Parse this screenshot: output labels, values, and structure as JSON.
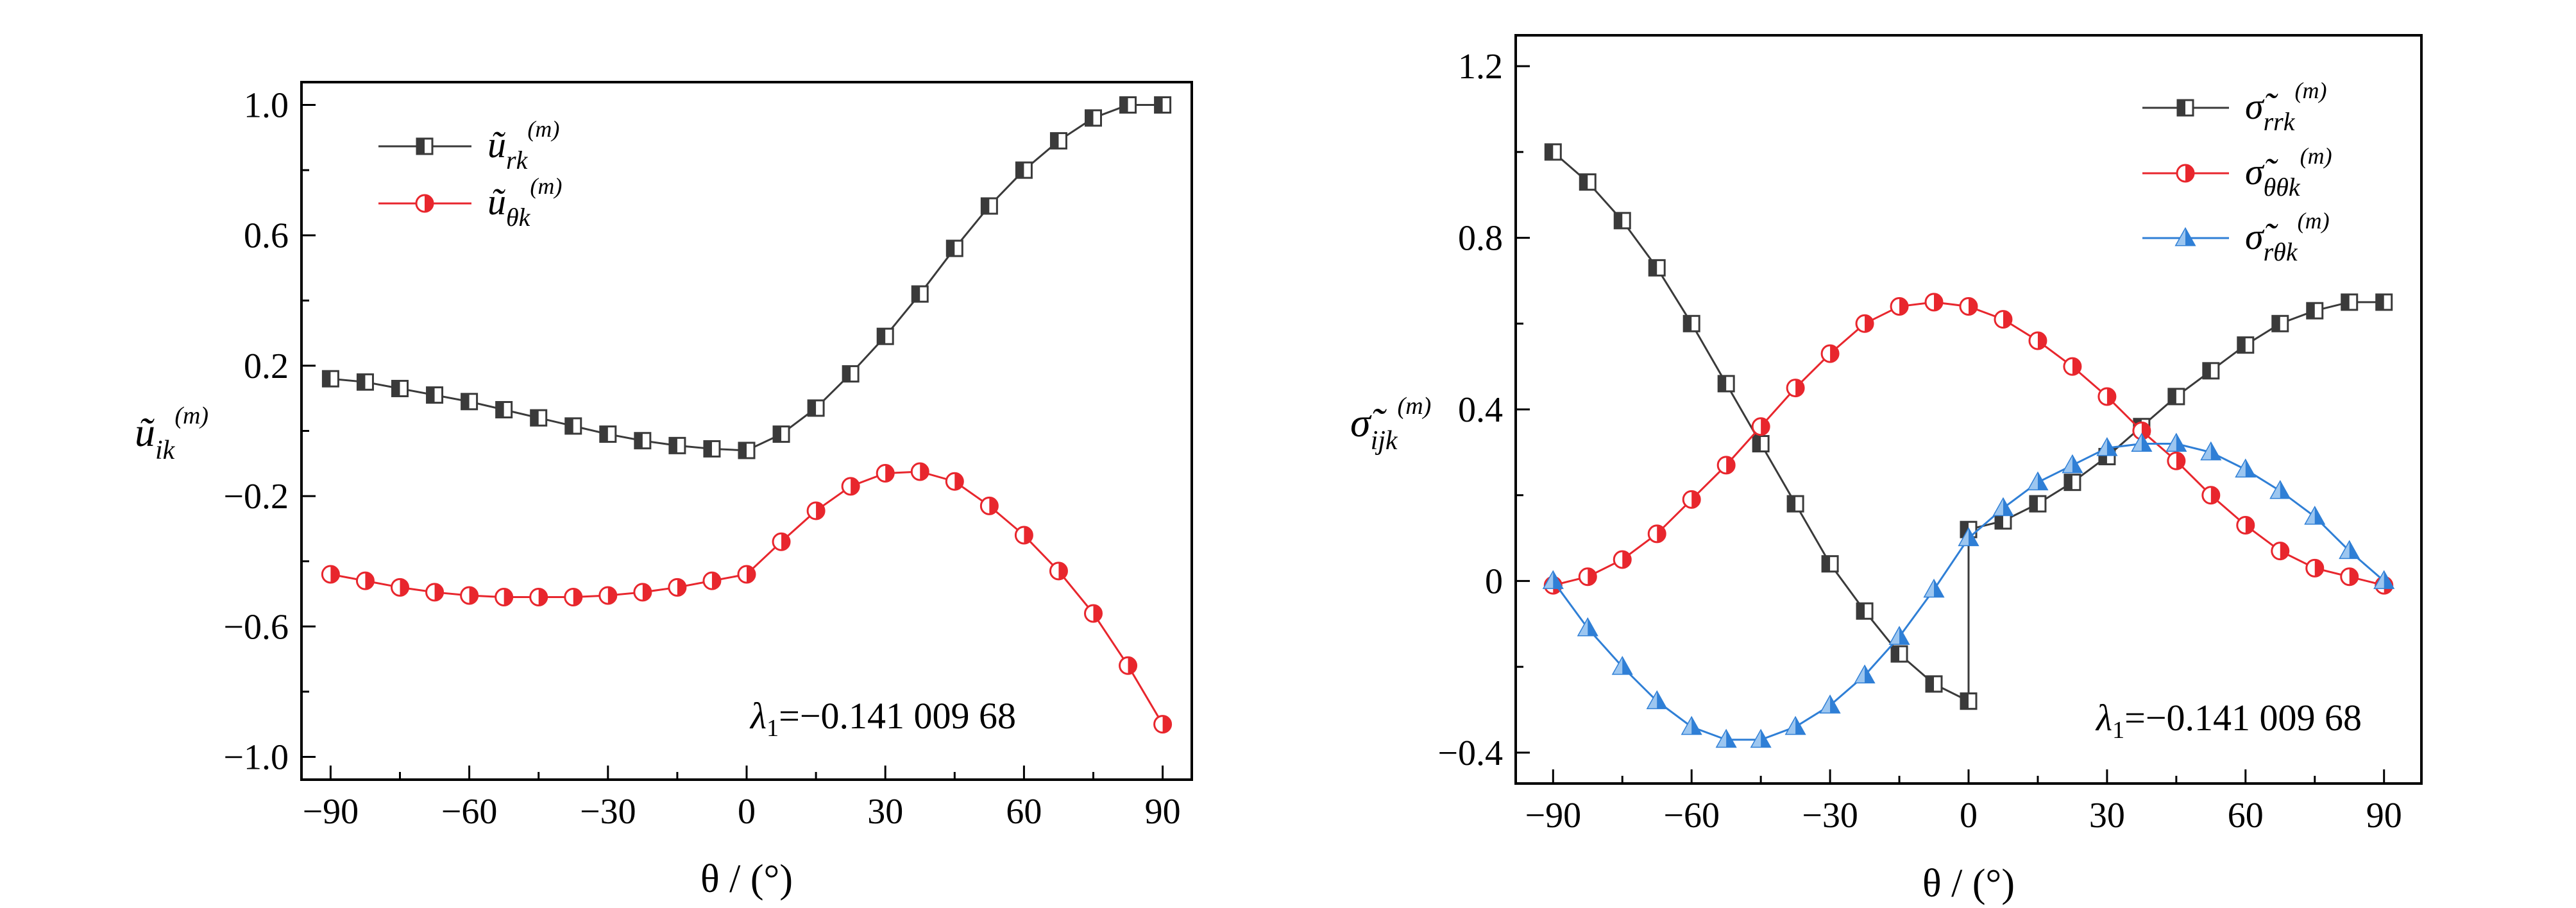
{
  "chart_data": [
    {
      "type": "line",
      "xlabel": "θ / (°)",
      "ylabel": "ũ_ik^(m)",
      "xlim": [
        -90,
        90
      ],
      "ylim": [
        -1.0,
        1.0
      ],
      "xticks": [
        -90,
        -60,
        -30,
        0,
        30,
        60,
        90
      ],
      "xtick_labels": [
        "−90",
        "−60",
        "−30",
        "0",
        "30",
        "60",
        "90"
      ],
      "yticks": [
        -1.0,
        -0.6,
        -0.2,
        0.2,
        0.6,
        1.0
      ],
      "ytick_labels": [
        "−1.0",
        "−0.6",
        "−0.2",
        "0.2",
        "0.6",
        "1.0"
      ],
      "grid": false,
      "legend_position": "top-left",
      "annotation": "λ1=−0.141 009 68",
      "series": [
        {
          "name": "ũ_rk^(m)",
          "color": "#3a3a3a",
          "marker": "square-half",
          "x": [
            -90,
            -82.5,
            -75,
            -67.5,
            -60,
            -52.5,
            -45,
            -37.5,
            -30,
            -22.5,
            -15,
            -7.5,
            0,
            7.5,
            15,
            22.5,
            30,
            37.5,
            45,
            52.5,
            60,
            67.5,
            75,
            82.5,
            90
          ],
          "values": [
            0.16,
            0.15,
            0.13,
            0.11,
            0.09,
            0.065,
            0.04,
            0.015,
            -0.01,
            -0.03,
            -0.045,
            -0.055,
            -0.06,
            -0.01,
            0.07,
            0.175,
            0.29,
            0.42,
            0.56,
            0.69,
            0.8,
            0.89,
            0.96,
            1.0,
            1.0
          ]
        },
        {
          "name": "ũ_θk^(m)",
          "color": "#e8262d",
          "marker": "circle-half",
          "x": [
            -90,
            -82.5,
            -75,
            -67.5,
            -60,
            -52.5,
            -45,
            -37.5,
            -30,
            -22.5,
            -15,
            -7.5,
            0,
            7.5,
            15,
            22.5,
            30,
            37.5,
            45,
            52.5,
            60,
            67.5,
            75,
            82.5,
            90
          ],
          "values": [
            -0.44,
            -0.46,
            -0.48,
            -0.495,
            -0.505,
            -0.51,
            -0.51,
            -0.51,
            -0.505,
            -0.495,
            -0.48,
            -0.46,
            -0.44,
            -0.34,
            -0.245,
            -0.17,
            -0.13,
            -0.125,
            -0.155,
            -0.23,
            -0.32,
            -0.43,
            -0.56,
            -0.72,
            -0.9
          ]
        }
      ]
    },
    {
      "type": "line",
      "xlabel": "θ / (°)",
      "ylabel": "σ̃_ijk^(m)",
      "xlim": [
        -90,
        90
      ],
      "ylim": [
        -0.4,
        1.2
      ],
      "xticks": [
        -90,
        -60,
        -30,
        0,
        30,
        60,
        90
      ],
      "xtick_labels": [
        "−90",
        "−60",
        "−30",
        "0",
        "30",
        "60",
        "90"
      ],
      "yticks": [
        -0.4,
        0,
        0.4,
        0.8,
        1.2
      ],
      "ytick_labels": [
        "−0.4",
        "0",
        "0.4",
        "0.8",
        "1.2"
      ],
      "grid": false,
      "legend_position": "top-right",
      "annotation": "λ1=−0.141 009 68",
      "series": [
        {
          "name": "σ̃_rrk^(m)",
          "color": "#3a3a3a",
          "marker": "square-half",
          "segments": [
            {
              "x": [
                -90,
                -82.5,
                -75,
                -67.5,
                -60,
                -52.5,
                -45,
                -37.5,
                -30,
                -22.5,
                -15,
                -7.5,
                0
              ],
              "values": [
                1.0,
                0.93,
                0.84,
                0.73,
                0.6,
                0.46,
                0.32,
                0.18,
                0.04,
                -0.07,
                -0.17,
                -0.24,
                -0.28
              ]
            },
            {
              "x": [
                0,
                0,
                7.5,
                15,
                22.5,
                30,
                37.5,
                45,
                52.5,
                60,
                67.5,
                75,
                82.5,
                90
              ],
              "values": [
                -0.28,
                0.12,
                0.14,
                0.18,
                0.23,
                0.29,
                0.36,
                0.43,
                0.49,
                0.55,
                0.6,
                0.63,
                0.65,
                0.65
              ]
            }
          ]
        },
        {
          "name": "σ̃_θθk^(m)",
          "color": "#e8262d",
          "marker": "circle-half",
          "x": [
            -90,
            -82.5,
            -75,
            -67.5,
            -60,
            -52.5,
            -45,
            -37.5,
            -30,
            -22.5,
            -15,
            -7.5,
            0,
            7.5,
            15,
            22.5,
            30,
            37.5,
            45,
            52.5,
            60,
            67.5,
            75,
            82.5,
            90
          ],
          "values": [
            -0.01,
            0.01,
            0.05,
            0.11,
            0.19,
            0.27,
            0.36,
            0.45,
            0.53,
            0.6,
            0.64,
            0.65,
            0.64,
            0.61,
            0.56,
            0.5,
            0.43,
            0.35,
            0.28,
            0.2,
            0.13,
            0.07,
            0.03,
            0.01,
            -0.01
          ]
        },
        {
          "name": "σ̃_rθk^(m)",
          "color": "#2f7fd6",
          "marker": "triangle-half",
          "x": [
            -90,
            -82.5,
            -75,
            -67.5,
            -60,
            -52.5,
            -45,
            -37.5,
            -30,
            -22.5,
            -15,
            -7.5,
            0,
            7.5,
            15,
            22.5,
            30,
            37.5,
            45,
            52.5,
            60,
            67.5,
            75,
            82.5,
            90
          ],
          "values": [
            0.0,
            -0.11,
            -0.2,
            -0.28,
            -0.34,
            -0.37,
            -0.37,
            -0.34,
            -0.29,
            -0.22,
            -0.13,
            -0.02,
            0.1,
            0.17,
            0.23,
            0.27,
            0.31,
            0.32,
            0.32,
            0.3,
            0.26,
            0.21,
            0.15,
            0.07,
            0.0
          ]
        }
      ]
    }
  ]
}
